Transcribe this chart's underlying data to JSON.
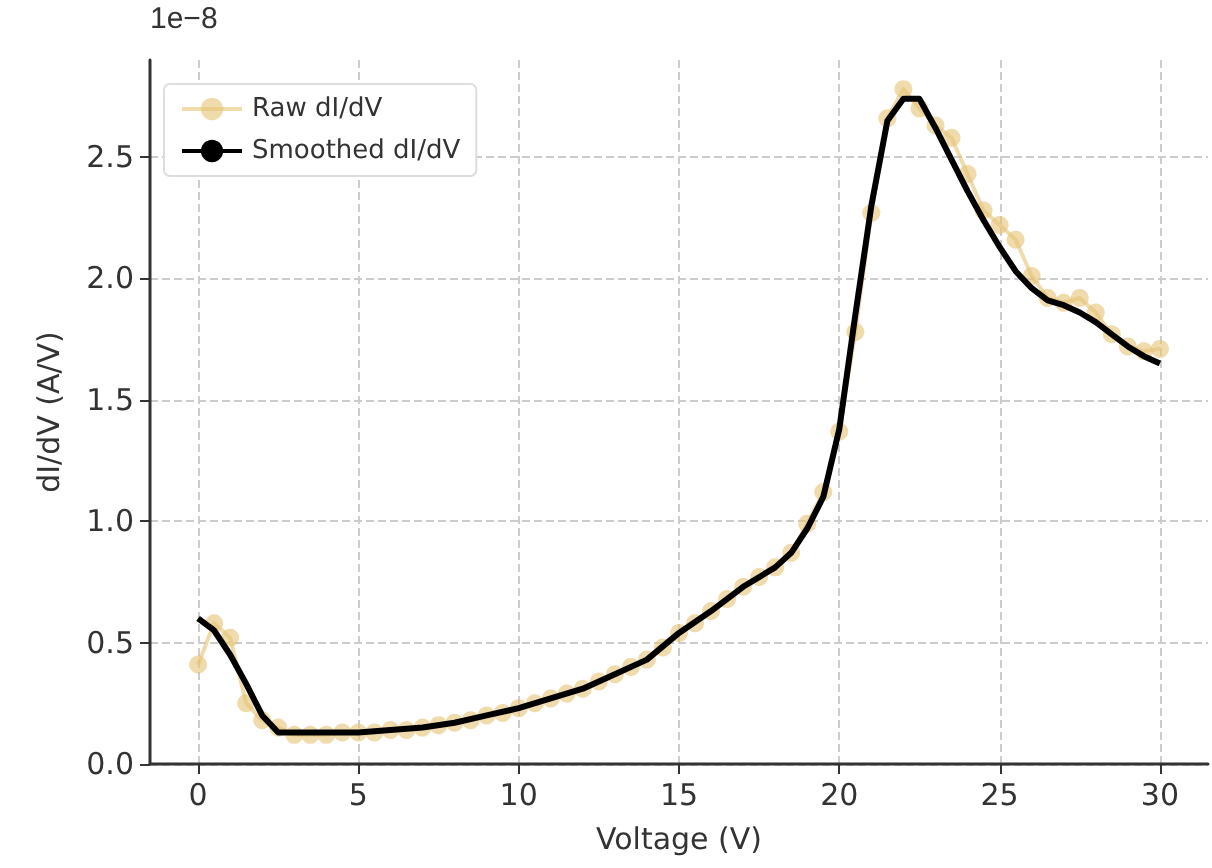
{
  "chart_data": {
    "type": "line",
    "xlabel": "Voltage (V)",
    "ylabel": "dI/dV (A/V)",
    "annotations": [
      "1e−8"
    ],
    "xlim": [
      -1.5,
      31.5
    ],
    "xticks": [
      0,
      5,
      10,
      15,
      20,
      25,
      30
    ],
    "ylim": [
      0,
      2.9
    ],
    "yticks": [
      {
        "value": 0,
        "label": "0.0"
      },
      0.5,
      {
        "value": 1,
        "label": "1.0"
      },
      1.5,
      {
        "value": 2,
        "label": "2.0"
      },
      2.5
    ],
    "grid": true,
    "legend": "top left",
    "series": [
      {
        "name": "Raw dI/dV",
        "color": "#e6c375",
        "marker": "circle",
        "x": [
          0,
          0.5,
          1,
          1.5,
          2,
          2.5,
          3,
          3.5,
          4,
          4.5,
          5,
          5.5,
          6,
          6.5,
          7,
          7.5,
          8,
          8.5,
          9,
          9.5,
          10,
          10.5,
          11,
          11.5,
          12,
          12.5,
          13,
          13.5,
          14,
          14.5,
          15,
          15.5,
          16,
          16.5,
          17,
          17.5,
          18,
          18.5,
          19,
          19.5,
          20,
          20.5,
          21,
          21.5,
          22,
          22.5,
          23,
          23.5,
          24,
          24.5,
          25,
          25.5,
          26,
          26.5,
          27,
          27.5,
          28,
          28.5,
          29,
          29.5,
          30
        ],
        "values": [
          0.41,
          0.58,
          0.52,
          0.25,
          0.18,
          0.15,
          0.12,
          0.12,
          0.12,
          0.13,
          0.13,
          0.13,
          0.14,
          0.14,
          0.15,
          0.16,
          0.17,
          0.18,
          0.2,
          0.21,
          0.23,
          0.25,
          0.27,
          0.29,
          0.31,
          0.34,
          0.37,
          0.4,
          0.43,
          0.48,
          0.54,
          0.58,
          0.63,
          0.68,
          0.73,
          0.77,
          0.81,
          0.87,
          0.99,
          1.12,
          1.37,
          1.78,
          2.27,
          2.66,
          2.78,
          2.7,
          2.63,
          2.58,
          2.43,
          2.28,
          2.22,
          2.16,
          2.01,
          1.92,
          1.9,
          1.92,
          1.86,
          1.77,
          1.72,
          1.7,
          1.71
        ]
      },
      {
        "name": "Smoothed dI/dV",
        "color": "#000000",
        "marker": "none",
        "x": [
          0,
          0.5,
          1,
          1.5,
          2,
          2.5,
          3,
          4,
          5,
          6,
          7,
          8,
          9,
          10,
          11,
          12,
          13,
          14,
          15,
          16,
          17,
          18,
          18.5,
          19,
          19.5,
          20,
          20.5,
          21,
          21.5,
          22,
          22.5,
          23,
          23.5,
          24,
          24.5,
          25,
          25.5,
          26,
          26.5,
          27,
          27.5,
          28,
          28.5,
          29,
          29.5,
          30
        ],
        "values": [
          0.6,
          0.55,
          0.45,
          0.33,
          0.2,
          0.13,
          0.13,
          0.13,
          0.13,
          0.14,
          0.15,
          0.17,
          0.2,
          0.23,
          0.27,
          0.31,
          0.37,
          0.43,
          0.54,
          0.63,
          0.73,
          0.81,
          0.87,
          0.97,
          1.1,
          1.38,
          1.85,
          2.3,
          2.65,
          2.74,
          2.74,
          2.62,
          2.49,
          2.36,
          2.24,
          2.13,
          2.03,
          1.96,
          1.91,
          1.89,
          1.86,
          1.82,
          1.77,
          1.72,
          1.68,
          1.65
        ]
      }
    ]
  }
}
